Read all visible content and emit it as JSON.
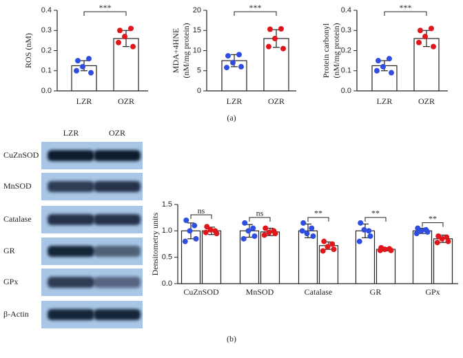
{
  "chart_data": [
    {
      "type": "bar",
      "ylabel": [
        "ROS (nM)"
      ],
      "categories": [
        "LZR",
        "OZR"
      ],
      "values": [
        0.125,
        0.26
      ],
      "errors": [
        0.025,
        0.04
      ],
      "points": [
        [
          0.15,
          0.16,
          0.12,
          0.09,
          0.1
        ],
        [
          0.3,
          0.31,
          0.27,
          0.22,
          0.24
        ]
      ],
      "colors": [
        "#2f4de0",
        "#e0161b"
      ],
      "ylim": [
        0,
        0.4
      ],
      "yticks": [
        {
          "value": 0,
          "label": "0.0"
        },
        0.1,
        0.2,
        0.3,
        0.4
      ],
      "significance": "***"
    },
    {
      "type": "bar",
      "ylabel": [
        "MDA+4HNE",
        "(nM/mg protein)"
      ],
      "categories": [
        "LZR",
        "OZR"
      ],
      "values": [
        7.5,
        13
      ],
      "errors": [
        1.5,
        2.2
      ],
      "points": [
        [
          8.7,
          9,
          7,
          6,
          5.8
        ],
        [
          15.3,
          15.4,
          13,
          10.5,
          11
        ]
      ],
      "colors": [
        "#2f4de0",
        "#e0161b"
      ],
      "ylim": [
        0,
        20
      ],
      "yticks": [
        0,
        5,
        10,
        15,
        20
      ],
      "significance": "***"
    },
    {
      "type": "bar",
      "ylabel": [
        "Protein carbonyl",
        "(nM/mg protein)"
      ],
      "categories": [
        "LZR",
        "OZR"
      ],
      "values": [
        0.125,
        0.26
      ],
      "errors": [
        0.025,
        0.04
      ],
      "points": [
        [
          0.15,
          0.16,
          0.12,
          0.09,
          0.1
        ],
        [
          0.3,
          0.31,
          0.27,
          0.22,
          0.24
        ]
      ],
      "colors": [
        "#2f4de0",
        "#e0161b"
      ],
      "ylim": [
        0,
        0.4
      ],
      "yticks": [
        {
          "value": 0,
          "label": "0.0"
        },
        0.1,
        0.2,
        0.3,
        0.4
      ],
      "significance": "***"
    },
    {
      "type": "grouped_bar",
      "ylabel": [
        "Densitometry units"
      ],
      "categories": [
        "CuZnSOD",
        "MnSOD",
        "Catalase",
        "GR",
        "GPx"
      ],
      "series": [
        {
          "color": "#2f4de0",
          "values": [
            1,
            1,
            1,
            1,
            1
          ],
          "errors": [
            0.15,
            0.12,
            0.13,
            0.13,
            0.05
          ],
          "points": [
            [
              1.2,
              1.1,
              1.0,
              0.85,
              0.8
            ],
            [
              1.15,
              1.05,
              1.0,
              0.9,
              0.85
            ],
            [
              1.15,
              1.05,
              0.95,
              0.9,
              1.0
            ],
            [
              1.15,
              1.0,
              1.02,
              0.9,
              0.8
            ],
            [
              1.05,
              1.02,
              1.0,
              0.98,
              0.95
            ]
          ]
        },
        {
          "color": "#e0161b",
          "values": [
            1.0,
            0.98,
            0.72,
            0.65,
            0.85
          ],
          "errors": [
            0.07,
            0.07,
            0.07,
            0.03,
            0.07
          ],
          "points": [
            [
              1.08,
              1.0,
              1.02,
              0.95,
              0.97
            ],
            [
              1.05,
              1.0,
              0.97,
              0.95,
              0.92
            ],
            [
              0.8,
              0.75,
              0.7,
              0.65,
              0.62
            ],
            [
              0.68,
              0.66,
              0.65,
              0.63,
              0.63
            ],
            [
              0.9,
              0.88,
              0.85,
              0.8,
              0.78
            ]
          ]
        }
      ],
      "ylim": [
        0,
        1.5
      ],
      "yticks": [
        {
          "value": 0,
          "label": "0.0"
        },
        0.5,
        {
          "value": 1,
          "label": "1.0"
        },
        1.5
      ],
      "significance": [
        "ns",
        "ns",
        "**",
        "**",
        "**"
      ]
    }
  ],
  "panel_labels": [
    "(a)",
    "(b)"
  ],
  "blot": {
    "lanes": [
      "LZR",
      "OZR"
    ],
    "rows": [
      "CuZnSOD",
      "MnSOD",
      "Catalase",
      "GR",
      "GPx",
      "β-Actin"
    ]
  }
}
